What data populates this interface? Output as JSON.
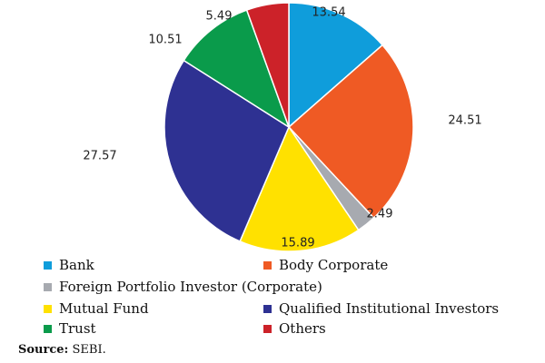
{
  "chart_data": {
    "type": "pie",
    "categories": [
      "Bank",
      "Body Corporate",
      "Foreign Portfolio Investor (Corporate)",
      "Mutual Fund",
      "Qualified Institutional Investors",
      "Trust",
      "Others"
    ],
    "values": [
      13.54,
      24.51,
      2.49,
      15.89,
      27.57,
      10.51,
      5.49
    ],
    "value_labels": [
      "13.54",
      "24.51",
      "2.49",
      "15.89",
      "27.57",
      "10.51",
      "5.49"
    ],
    "colors": [
      "#0f9ddb",
      "#ef5a24",
      "#a7aab0",
      "#ffe100",
      "#2e3192",
      "#0a9b4b",
      "#cc2229"
    ],
    "legend": [
      "Bank",
      "Body Corporate",
      "Foreign Portfolio Investor (Corporate)",
      "Mutual Fund",
      "Qualified Institutional Investors",
      "Trust",
      "Others"
    ],
    "legend_placement": "bottom",
    "start_angle": "12 o'clock",
    "direction": "clockwise"
  },
  "source": {
    "key": "Source:",
    "text": " SEBI."
  }
}
